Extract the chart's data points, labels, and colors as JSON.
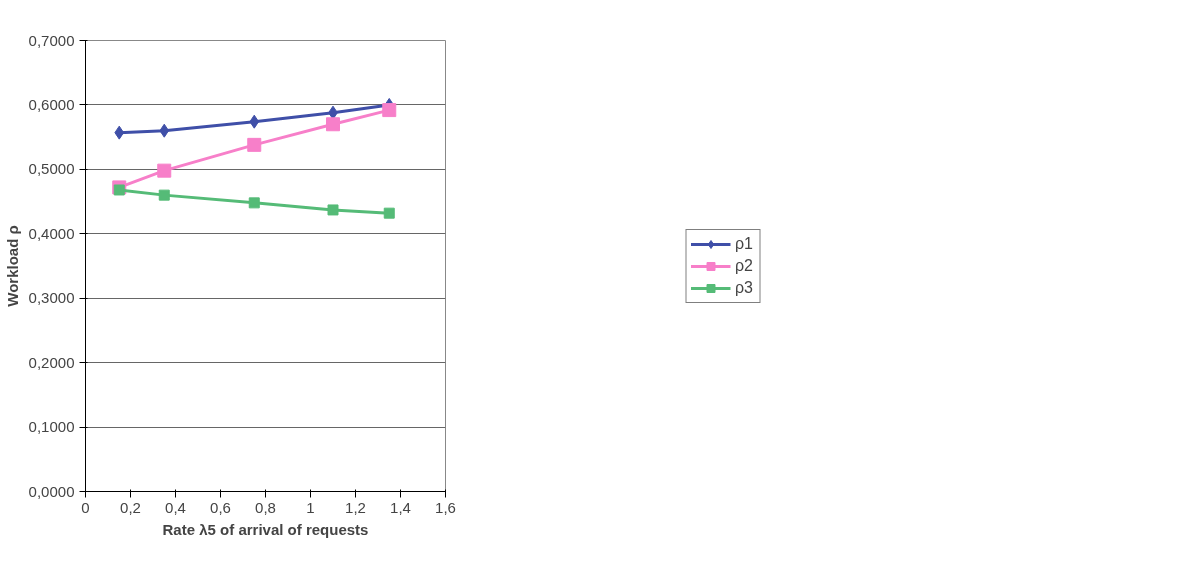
{
  "chart_data": {
    "type": "line",
    "xlabel": "Rate λ5 of arrival of requests",
    "ylabel": "Workload ρ",
    "x": [
      0.15,
      0.35,
      0.75,
      1.1,
      1.35
    ],
    "series": [
      {
        "name": "ρ1",
        "color": "#3f4fa8",
        "marker": "diamond",
        "values": [
          0.557,
          0.56,
          0.574,
          0.588,
          0.6
        ]
      },
      {
        "name": "ρ2",
        "color": "#f77fc9",
        "marker": "square",
        "values": [
          0.472,
          0.498,
          0.538,
          0.57,
          0.592
        ]
      },
      {
        "name": "ρ3",
        "color": "#55bb77",
        "marker": "square",
        "values": [
          0.468,
          0.46,
          0.448,
          0.437,
          0.432
        ]
      }
    ],
    "xlim": [
      0,
      1.6
    ],
    "xticks": [
      {
        "value": 0,
        "label": "0"
      },
      {
        "value": 0.2,
        "label": "0,2"
      },
      {
        "value": 0.4,
        "label": "0,4"
      },
      {
        "value": 0.6,
        "label": "0,6"
      },
      {
        "value": 0.8,
        "label": "0,8"
      },
      {
        "value": 1,
        "label": "1"
      },
      {
        "value": 1.2,
        "label": "1,2"
      },
      {
        "value": 1.4,
        "label": "1,4"
      },
      {
        "value": 1.6,
        "label": "1,6"
      }
    ],
    "ylim": [
      0,
      0.7
    ],
    "yticks": [
      {
        "value": 0,
        "label": "0,0000"
      },
      {
        "value": 0.1,
        "label": "0,1000"
      },
      {
        "value": 0.2,
        "label": "0,2000"
      },
      {
        "value": 0.3,
        "label": "0,3000"
      },
      {
        "value": 0.4,
        "label": "0,4000"
      },
      {
        "value": 0.5,
        "label": "0,5000"
      },
      {
        "value": 0.6,
        "label": "0,6000"
      },
      {
        "value": 0.7,
        "label": "0,7000"
      }
    ],
    "grid": "y",
    "legend": "right",
    "line_style": "solid"
  }
}
